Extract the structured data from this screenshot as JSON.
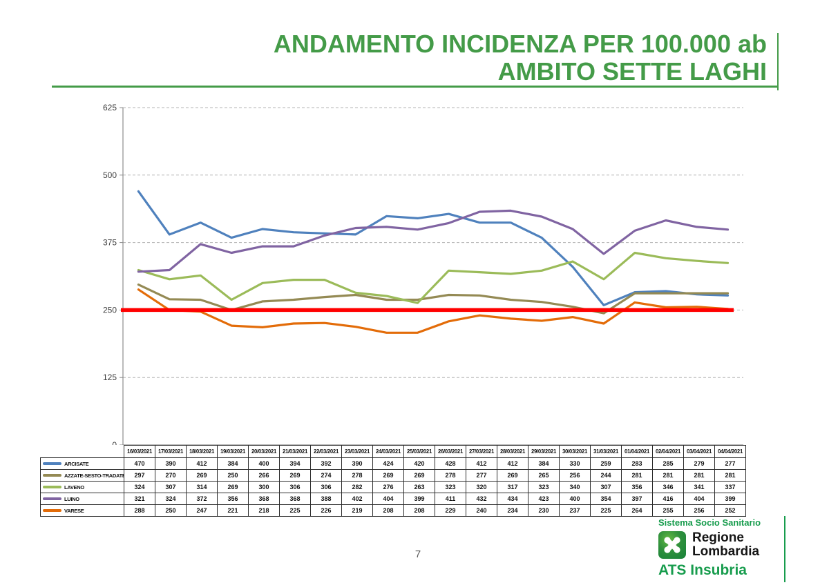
{
  "page": {
    "number": "7"
  },
  "title": {
    "line1": "ANDAMENTO INCIDENZA PER 100.000 ab",
    "line2": "AMBITO SETTE LAGHI",
    "color": "#449B48"
  },
  "chart_data": {
    "type": "line",
    "title": "ANDAMENTO INCIDENZA PER 100.000 ab - AMBITO SETTE LAGHI",
    "xlabel": "",
    "ylabel": "",
    "ylim": [
      0,
      625
    ],
    "yticks": [
      0,
      125,
      250,
      375,
      500,
      625
    ],
    "grid": "dashed-horizontal",
    "legend_position": "table-left",
    "threshold_line": {
      "value": 250,
      "color": "#FF0000"
    },
    "categories": [
      "16/03/2021",
      "17/03/2021",
      "18/03/2021",
      "19/03/2021",
      "20/03/2021",
      "21/03/2021",
      "22/03/2021",
      "23/03/2021",
      "24/03/2021",
      "25/03/2021",
      "26/03/2021",
      "27/03/2021",
      "28/03/2021",
      "29/03/2021",
      "30/03/2021",
      "31/03/2021",
      "01/04/2021",
      "02/04/2021",
      "03/04/2021",
      "04/04/2021"
    ],
    "series": [
      {
        "name": "ARCISATE",
        "color": "#4F81BD",
        "values": [
          470,
          390,
          412,
          384,
          400,
          394,
          392,
          390,
          424,
          420,
          428,
          412,
          412,
          384,
          330,
          259,
          283,
          285,
          279,
          277
        ]
      },
      {
        "name": "AZZATE-SESTO-TRADATE",
        "color": "#948A54",
        "values": [
          297,
          270,
          269,
          250,
          266,
          269,
          274,
          278,
          269,
          269,
          278,
          277,
          269,
          265,
          256,
          244,
          281,
          281,
          281,
          281
        ]
      },
      {
        "name": "LAVENO",
        "color": "#9BBB59",
        "values": [
          324,
          307,
          314,
          269,
          300,
          306,
          306,
          282,
          276,
          263,
          323,
          320,
          317,
          323,
          340,
          307,
          356,
          346,
          341,
          337
        ]
      },
      {
        "name": "LUINO",
        "color": "#8064A2",
        "values": [
          321,
          324,
          372,
          356,
          368,
          368,
          388,
          402,
          404,
          399,
          411,
          432,
          434,
          423,
          400,
          354,
          397,
          416,
          404,
          399
        ]
      },
      {
        "name": "VARESE",
        "color": "#E36C09",
        "values": [
          288,
          250,
          247,
          221,
          218,
          225,
          226,
          219,
          208,
          208,
          229,
          240,
          234,
          230,
          237,
          225,
          264,
          255,
          256,
          252
        ]
      }
    ]
  },
  "footer": {
    "sistema": "Sistema Socio Sanitario",
    "regione_line1": "Regione",
    "regione_line2": "Lombardia",
    "ats": "ATS Insubria"
  }
}
